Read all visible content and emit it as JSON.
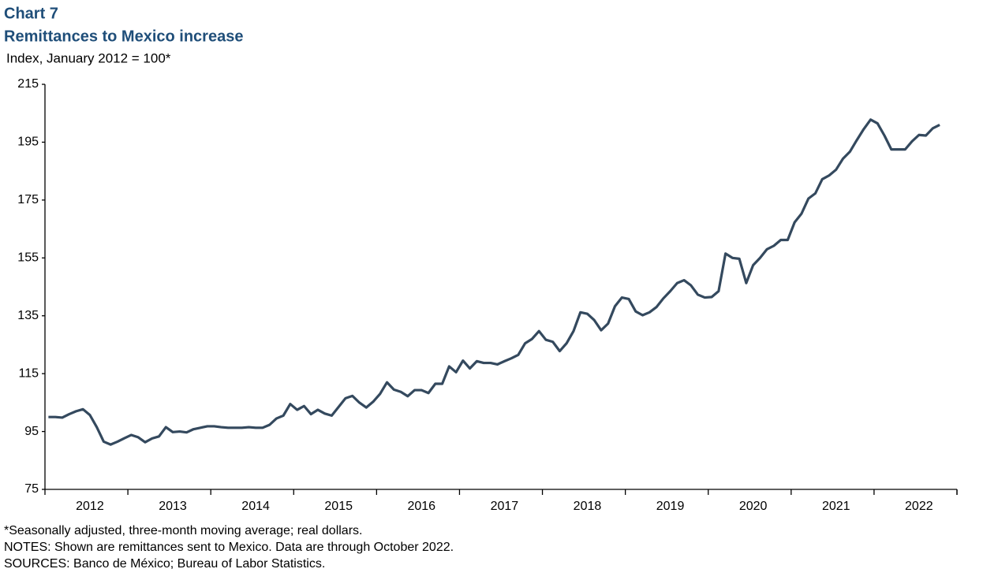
{
  "chart_data": {
    "type": "line",
    "title": "Chart 7",
    "subtitle": "Remittances to Mexico increase",
    "y_label": "Index, January 2012 = 100*",
    "notes": [
      "*Seasonally adjusted, three-month moving average; real dollars.",
      "NOTES: Shown are remittances sent to Mexico. Data are through October 2022.",
      "SOURCES: Banco de México;  Bureau of Labor Statistics."
    ],
    "color": "#34495e",
    "categories": [
      null,
      null,
      null,
      null,
      null,
      null,
      "2012",
      null,
      null,
      null,
      null,
      null,
      null,
      null,
      null,
      null,
      null,
      null,
      "2013",
      null,
      null,
      null,
      null,
      null,
      null,
      null,
      null,
      null,
      null,
      null,
      "2014",
      null,
      null,
      null,
      null,
      null,
      null,
      null,
      null,
      null,
      null,
      null,
      "2015",
      null,
      null,
      null,
      null,
      null,
      null,
      null,
      null,
      null,
      null,
      null,
      "2016",
      null,
      null,
      null,
      null,
      null,
      null,
      null,
      null,
      null,
      null,
      null,
      "2017",
      null,
      null,
      null,
      null,
      null,
      null,
      null,
      null,
      null,
      null,
      null,
      "2018",
      null,
      null,
      null,
      null,
      null,
      null,
      null,
      null,
      null,
      null,
      null,
      "2019",
      null,
      null,
      null,
      null,
      null,
      null,
      null,
      null,
      null,
      null,
      null,
      "2020",
      null,
      null,
      null,
      null,
      null,
      null,
      null,
      null,
      null,
      null,
      null,
      "2021",
      null,
      null,
      null,
      null,
      null,
      null,
      null,
      null,
      null,
      null,
      null,
      "2022",
      null,
      null,
      null
    ],
    "values": [
      100,
      100,
      99.8,
      101,
      102,
      102.7,
      100.7,
      96.5,
      91.5,
      90.5,
      91.5,
      92.7,
      93.8,
      93,
      91.3,
      92.6,
      93.3,
      96.5,
      94.8,
      95,
      94.7,
      95.8,
      96.3,
      96.8,
      96.8,
      96.5,
      96.3,
      96.3,
      96.3,
      96.5,
      96.3,
      96.3,
      97.3,
      99.5,
      100.5,
      104.5,
      102.5,
      103.8,
      101,
      102.5,
      101.2,
      100.5,
      103.5,
      106.5,
      107.3,
      105,
      103.3,
      105.3,
      108,
      112,
      109.5,
      108.7,
      107.2,
      109.3,
      109.3,
      108.3,
      111.5,
      111.5,
      117.5,
      115.5,
      119.5,
      116.8,
      119.3,
      118.7,
      118.7,
      118.2,
      119.3,
      120.3,
      121.5,
      125.5,
      127,
      129.7,
      126.7,
      126,
      122.8,
      125.5,
      129.7,
      136.2,
      135.7,
      133.5,
      130,
      132.3,
      138.3,
      141.3,
      140.8,
      136.5,
      135.2,
      136.2,
      138,
      141,
      143.5,
      146.3,
      147.3,
      145.5,
      142.3,
      141.3,
      141.5,
      143.5,
      156.5,
      155,
      154.7,
      146.3,
      152.5,
      155,
      158,
      159.2,
      161.2,
      161.2,
      167.3,
      170.3,
      175.5,
      177.3,
      182.2,
      183.5,
      185.5,
      189.3,
      191.7,
      195.7,
      199.5,
      202.8,
      201.5,
      197.3,
      192.5,
      192.5,
      192.5,
      195.3,
      197.5,
      197.3,
      199.8,
      201
    ],
    "ylim": [
      75,
      215
    ],
    "yticks": [
      75,
      95,
      115,
      135,
      155,
      175,
      195,
      215
    ],
    "grid": false
  }
}
